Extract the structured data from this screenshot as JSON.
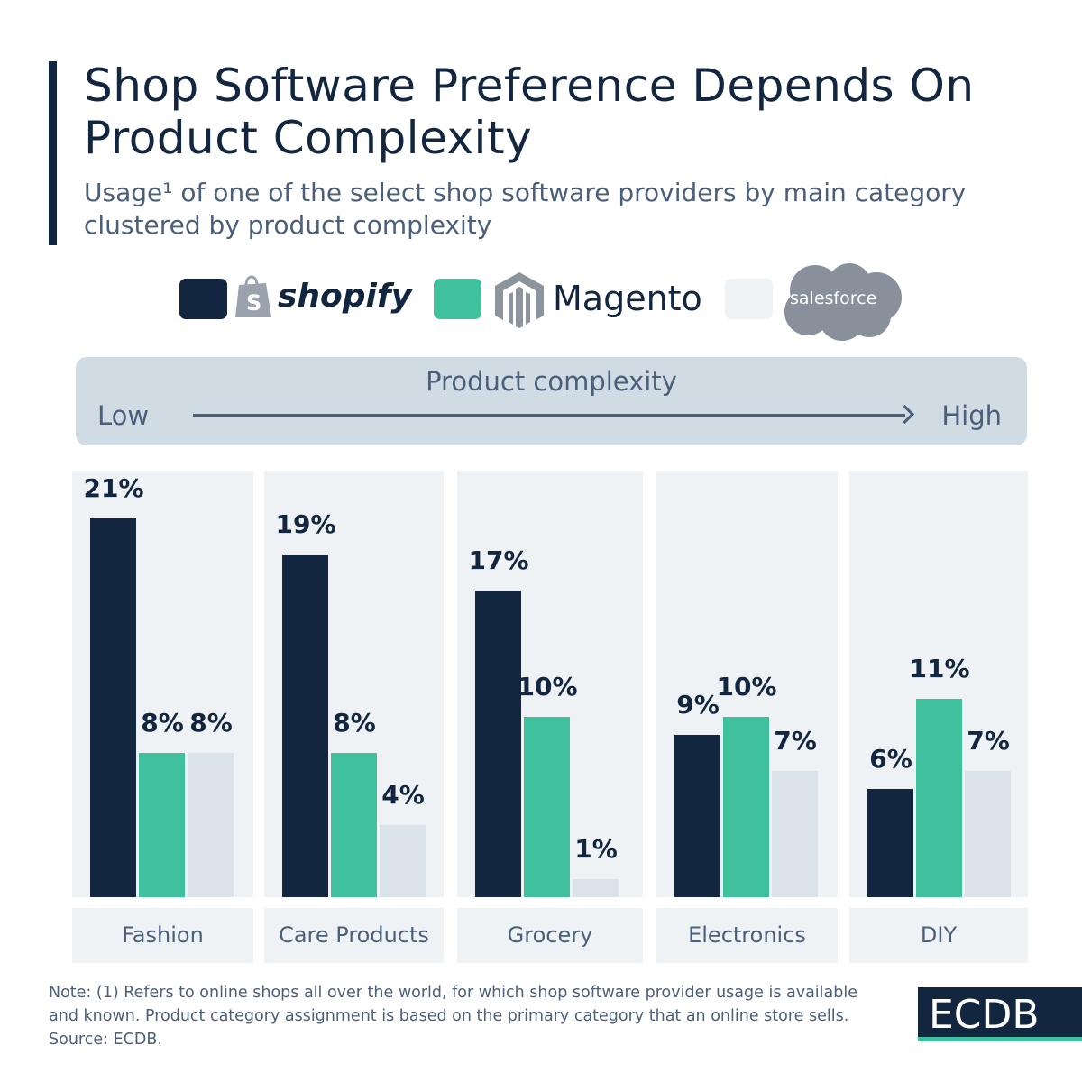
{
  "title": "Shop Software Preference Depends On Product Complexity",
  "subtitle": "Usage¹ of one of the select shop software providers by main category clustered by product complexity",
  "complexity": {
    "label": "Product complexity",
    "low": "Low",
    "high": "High"
  },
  "note": "Note: (1) Refers to online shops all over the world, for which shop software provider usage is available and known. Product category assignment is based on the primary category that an online store sells. Source: ECDB.",
  "brand": "ECDB",
  "chart_data": {
    "type": "bar",
    "title": "Shop Software Preference Depends On Product Complexity",
    "categories": [
      "Fashion",
      "Care Products",
      "Grocery",
      "Electronics",
      "DIY"
    ],
    "unit": "%",
    "series": [
      {
        "name": "shopify",
        "color": "#132640",
        "values": [
          21,
          19,
          17,
          9,
          6
        ]
      },
      {
        "name": "Magento",
        "color": "#3ec19c",
        "values": [
          8,
          8,
          10,
          10,
          11
        ]
      },
      {
        "name": "salesforce",
        "color": "#dae2ea",
        "values": [
          8,
          4,
          1,
          7,
          7
        ]
      }
    ],
    "legend_position": "top",
    "grid": false
  }
}
